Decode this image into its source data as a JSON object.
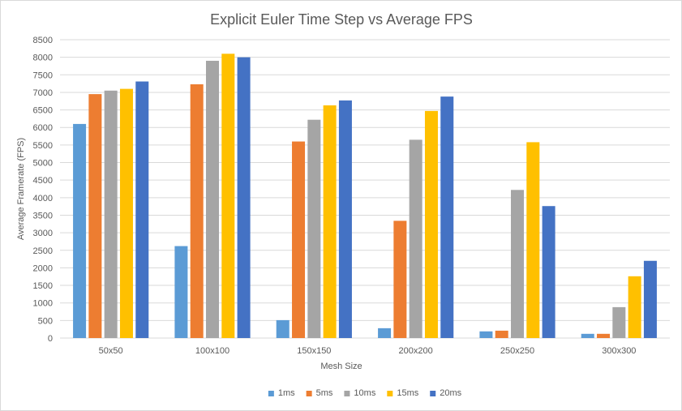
{
  "chart_data": {
    "type": "bar",
    "title": "Explicit Euler Time Step vs Average FPS",
    "xlabel": "Mesh Size",
    "ylabel": "Average Framerate (FPS)",
    "ylim": [
      0,
      8500
    ],
    "ytick_step": 500,
    "grid": true,
    "legend_position": "bottom",
    "categories": [
      "50x50",
      "100x100",
      "150x150",
      "200x200",
      "250x250",
      "300x300"
    ],
    "series": [
      {
        "name": "1ms",
        "color": "#5B9BD5",
        "values": [
          6100,
          2620,
          510,
          280,
          190,
          120
        ]
      },
      {
        "name": "5ms",
        "color": "#ED7D31",
        "values": [
          6950,
          7230,
          5600,
          3340,
          210,
          120
        ]
      },
      {
        "name": "10ms",
        "color": "#A5A5A5",
        "values": [
          7050,
          7900,
          6220,
          5650,
          4220,
          880
        ]
      },
      {
        "name": "15ms",
        "color": "#FFC000",
        "values": [
          7100,
          8100,
          6630,
          6470,
          5580,
          1760
        ]
      },
      {
        "name": "20ms",
        "color": "#4472C4",
        "values": [
          7310,
          8000,
          6770,
          6880,
          3760,
          2200
        ]
      }
    ]
  }
}
